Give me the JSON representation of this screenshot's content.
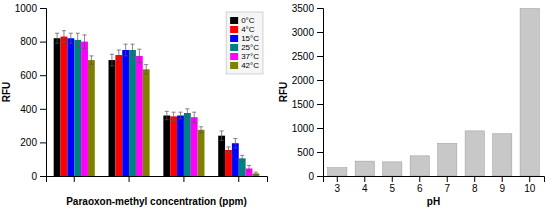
{
  "chart_data": [
    {
      "type": "bar",
      "xlabel": "Paraoxon-methyl concentration (ppm)",
      "ylabel": "RFU",
      "categories": [
        null,
        null,
        null,
        null
      ],
      "series": [
        {
          "name": "0°C",
          "color": "#000000",
          "values": [
            820,
            690,
            360,
            240
          ],
          "errors": [
            30,
            35,
            25,
            28
          ]
        },
        {
          "name": "4°C",
          "color": "#ff0000",
          "values": [
            830,
            720,
            355,
            155
          ],
          "errors": [
            35,
            30,
            25,
            18
          ]
        },
        {
          "name": "15°C",
          "color": "#0000ff",
          "values": [
            820,
            750,
            360,
            195
          ],
          "errors": [
            30,
            35,
            20,
            28
          ]
        },
        {
          "name": "25°C",
          "color": "#008080",
          "values": [
            810,
            750,
            375,
            105
          ],
          "errors": [
            40,
            35,
            25,
            18
          ]
        },
        {
          "name": "37°C",
          "color": "#ff00ff",
          "values": [
            800,
            715,
            350,
            45
          ],
          "errors": [
            40,
            40,
            30,
            18
          ]
        },
        {
          "name": "42°C",
          "color": "#808000",
          "values": [
            690,
            635,
            275,
            15
          ],
          "errors": [
            25,
            28,
            18,
            8
          ]
        }
      ],
      "ylim": [
        0,
        1000
      ],
      "yticks": [
        0,
        200,
        400,
        600,
        800,
        1000
      ],
      "legend": "upper right"
    },
    {
      "type": "bar",
      "xlabel": "pH",
      "ylabel": "RFU",
      "categories": [
        "3",
        "4",
        "5",
        "6",
        "7",
        "8",
        "9",
        "10"
      ],
      "values": [
        175,
        310,
        295,
        420,
        680,
        940,
        880,
        3490
      ],
      "color": "#c8c8c8",
      "ylim": [
        0,
        3500
      ],
      "yticks": [
        0,
        500,
        1000,
        1500,
        2000,
        2500,
        3000,
        3500
      ]
    }
  ]
}
